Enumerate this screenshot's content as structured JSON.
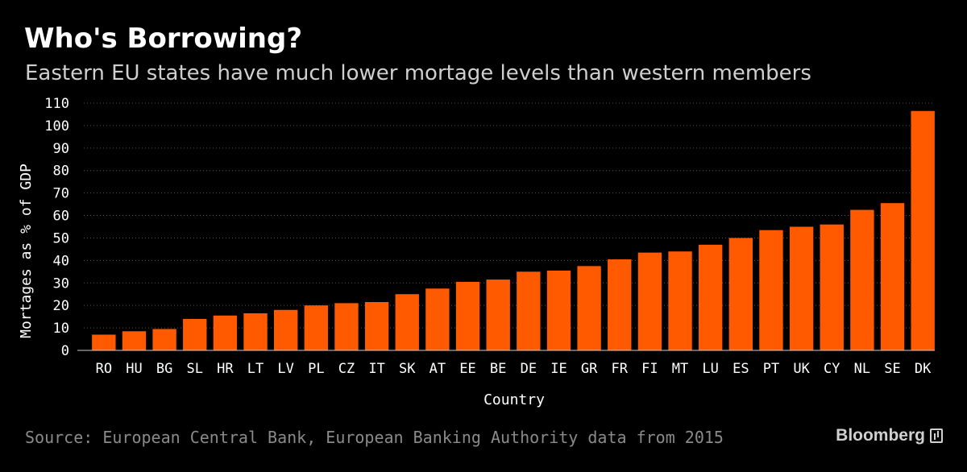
{
  "title": "Who's Borrowing?",
  "subtitle": "Eastern EU states have much lower mortage levels than western members",
  "source": "Source: European Central Bank, European Banking Authority data from 2015",
  "brand": "Bloomberg",
  "colors": {
    "bar": "#ff5a00",
    "background": "#000000",
    "grid": "#555555",
    "text": "#ffffff"
  },
  "chart_data": {
    "type": "bar",
    "title": "Who's Borrowing?",
    "subtitle": "Eastern EU states have much lower mortage levels than western members",
    "xlabel": "Country",
    "ylabel": "Mortages as % of GDP",
    "ylim": [
      0,
      110
    ],
    "yticks": [
      0,
      10,
      20,
      30,
      40,
      50,
      60,
      70,
      80,
      90,
      100,
      110
    ],
    "grid": true,
    "categories": [
      "RO",
      "HU",
      "BG",
      "SL",
      "HR",
      "LT",
      "LV",
      "PL",
      "CZ",
      "IT",
      "SK",
      "AT",
      "EE",
      "BE",
      "DE",
      "IE",
      "GR",
      "FR",
      "FI",
      "MT",
      "LU",
      "ES",
      "PT",
      "UK",
      "CY",
      "NL",
      "SE",
      "DK"
    ],
    "values": [
      7,
      8.5,
      9.5,
      14,
      15.5,
      16.5,
      18,
      20,
      21,
      21.5,
      25,
      27.5,
      30.5,
      31.5,
      35,
      35.5,
      37.5,
      40.5,
      43.5,
      44,
      47,
      50,
      53.5,
      55,
      56,
      62.5,
      65.5,
      106.5
    ]
  }
}
